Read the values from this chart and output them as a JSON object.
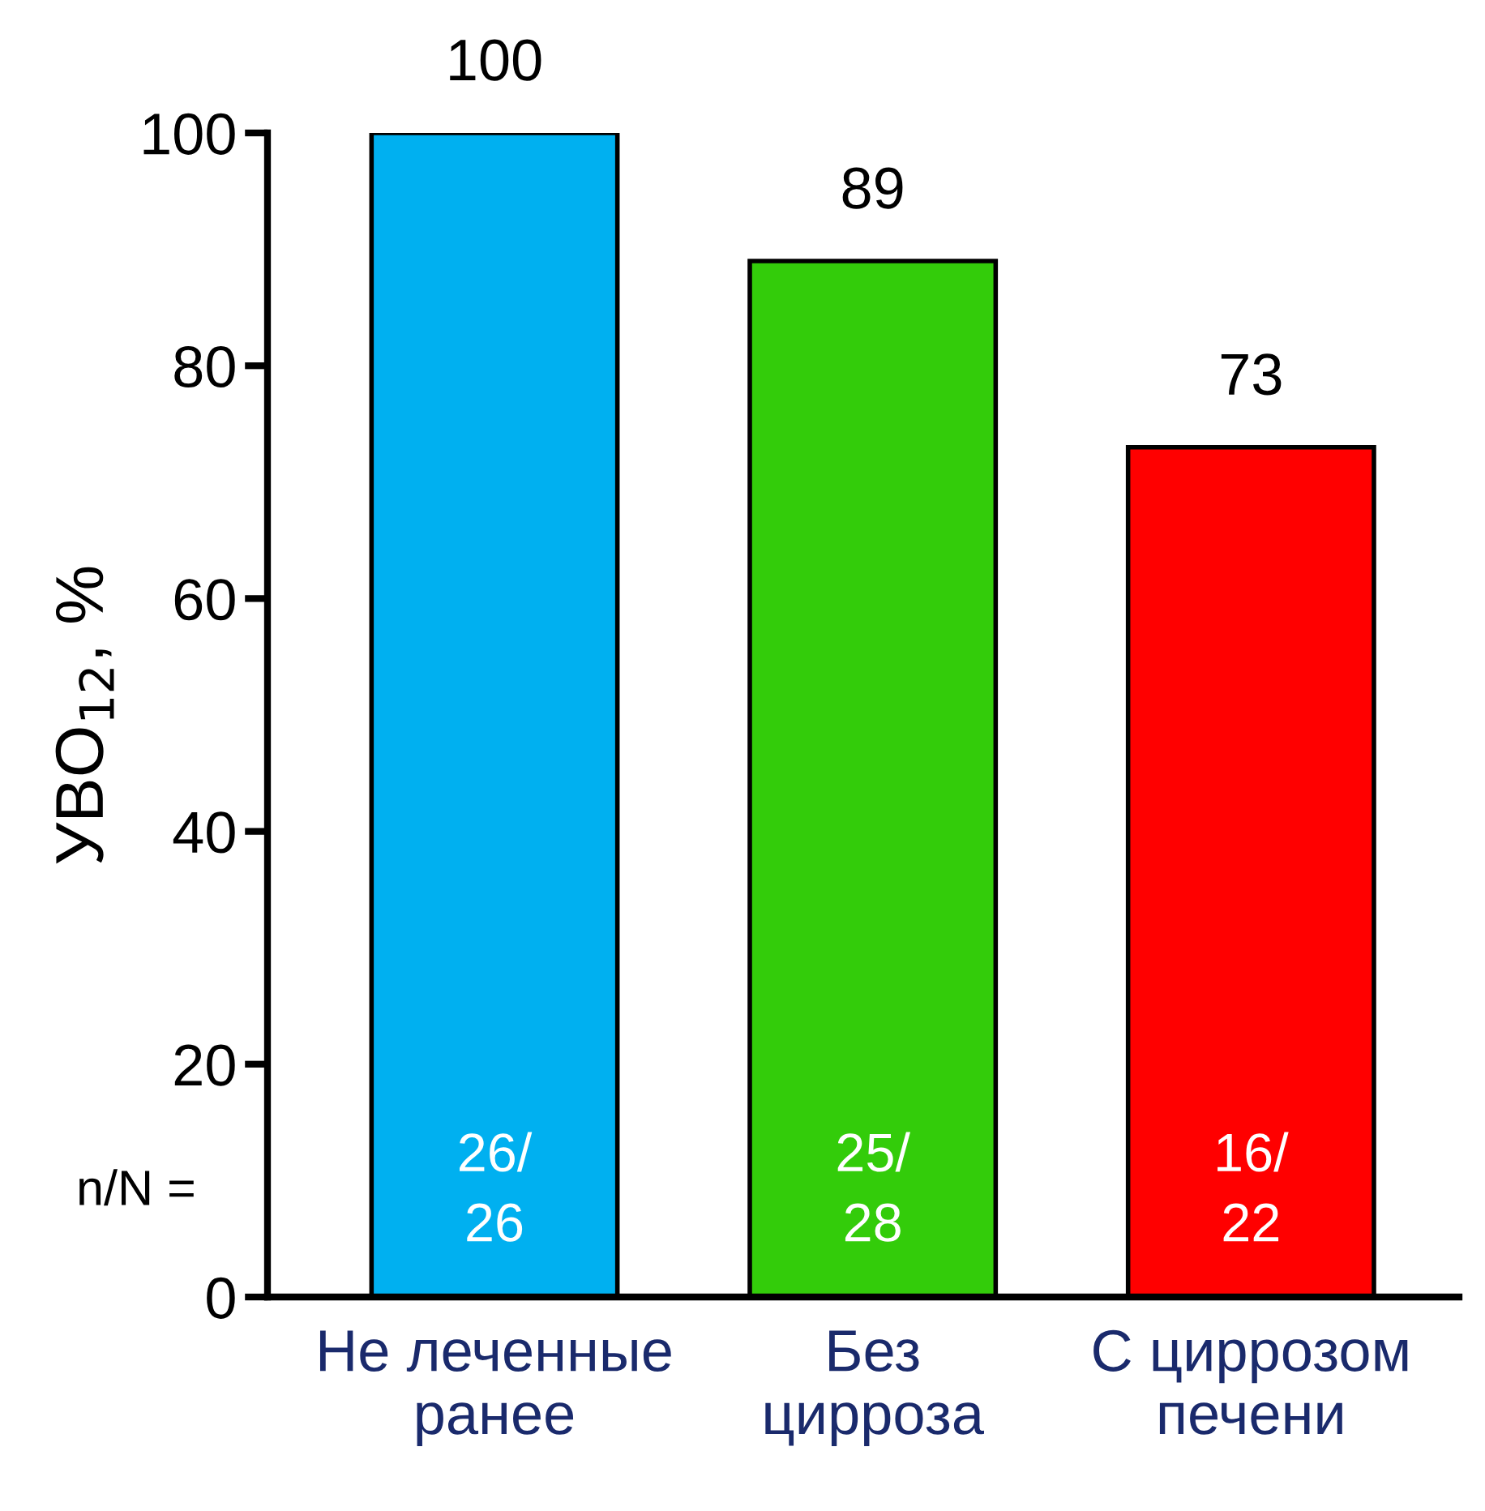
{
  "chart_data": {
    "type": "bar",
    "ylabel": "УВО$_{12}$, %",
    "categories": [
      "Не леченные\nранее",
      "Без\nцирроза",
      "С циррозом\nпечени"
    ],
    "values": [
      100,
      89,
      73
    ],
    "colors": [
      "#00b0f0",
      "#33cc0a",
      "#ff0000"
    ],
    "ylim": [
      0,
      100
    ],
    "yticks": [
      0,
      20,
      40,
      60,
      80,
      100
    ],
    "grid": false,
    "data_labels": true,
    "annotations": [
      "n/N =",
      "26/\n26",
      "25/\n28",
      "16/\n22"
    ]
  }
}
